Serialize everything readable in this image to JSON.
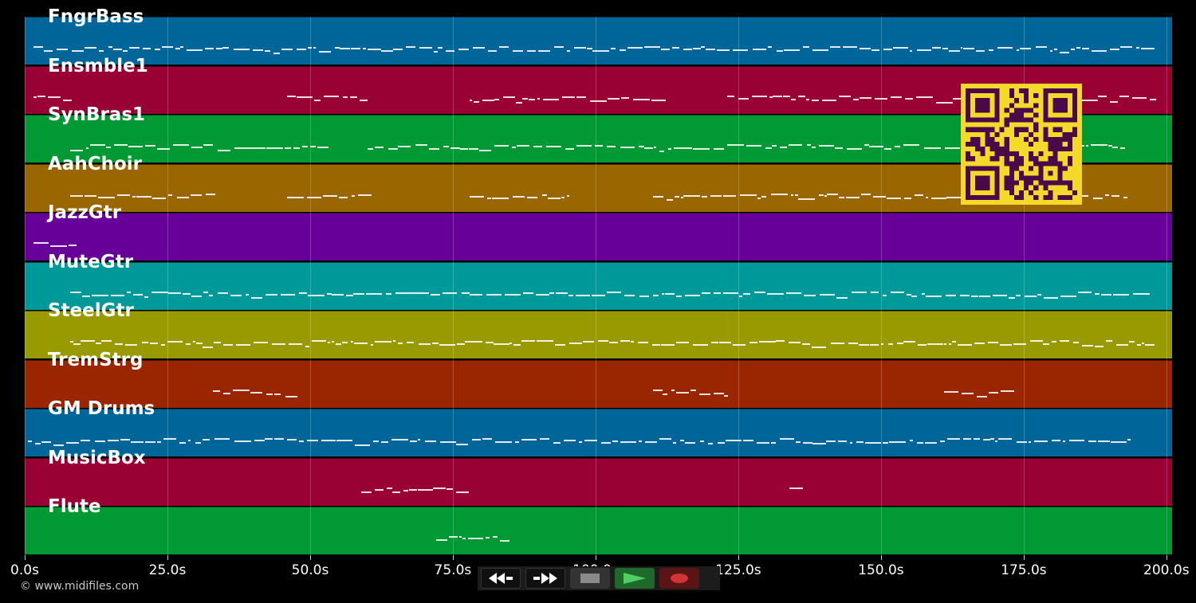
{
  "tracks": [
    {
      "name": "FngrBass",
      "color": "#006699"
    },
    {
      "name": "Ensmble1",
      "color": "#990033"
    },
    {
      "name": "SynBras1",
      "color": "#009933"
    },
    {
      "name": "AahChoir",
      "color": "#996600"
    },
    {
      "name": "JazzGtr",
      "color": "#660099"
    },
    {
      "name": "MuteGtr",
      "color": "#009999"
    },
    {
      "name": "SteelGtr",
      "color": "#999900"
    },
    {
      "name": "TremStrg",
      "color": "#992600"
    },
    {
      "name": "GM Drums",
      "color": "#006699"
    },
    {
      "name": "MusicBox",
      "color": "#990033"
    },
    {
      "name": "Flute",
      "color": "#009933"
    }
  ],
  "axis": {
    "start": 0,
    "end": 201,
    "ticks": [
      {
        "t": 0,
        "label": "0.0s"
      },
      {
        "t": 25,
        "label": "25.0s"
      },
      {
        "t": 50,
        "label": "50.0s"
      },
      {
        "t": 75,
        "label": "75.0s"
      },
      {
        "t": 100,
        "label": "100.0s"
      },
      {
        "t": 125,
        "label": "125.0s"
      },
      {
        "t": 150,
        "label": "150.0s"
      },
      {
        "t": 175,
        "label": "175.0s"
      },
      {
        "t": 200,
        "label": "200.0s"
      }
    ]
  },
  "copyright": "© www.midifiles.com",
  "transport": {
    "buttons": [
      {
        "name": "rewind-button",
        "icon": "rewind-icon"
      },
      {
        "name": "fast-forward-button",
        "icon": "fast-forward-icon"
      },
      {
        "name": "stop-button",
        "icon": "stop-icon"
      },
      {
        "name": "play-button",
        "icon": "play-icon"
      },
      {
        "name": "record-button",
        "icon": "record-icon"
      }
    ],
    "colors": {
      "stop": "#8a8a8a",
      "play": "#4fcf62",
      "record": "#d03434"
    }
  },
  "qr_code": {
    "icon": "qr-code-icon",
    "fg": "#4a0a4a",
    "bg": "#f5d92a"
  }
}
